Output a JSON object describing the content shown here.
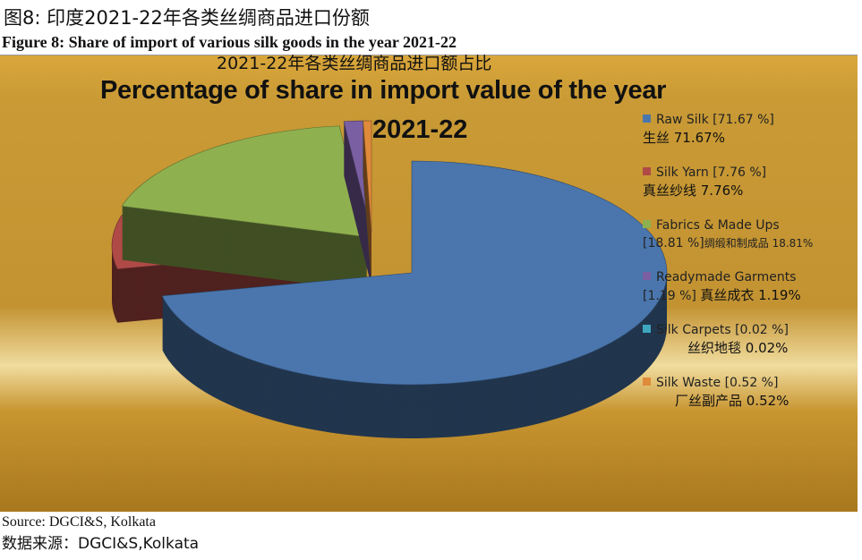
{
  "header": {
    "cn_title": "图8: 印度2021-22年各类丝绸商品进口份额",
    "en_title": "Figure 8: Share of import of various silk goods in the year 2021-22"
  },
  "chart_data": {
    "type": "pie",
    "style": "3d-exploded",
    "cn_title": "2021-22年各类丝绸商品进口额占比",
    "title": "Percentage of share in import value of the year",
    "subtitle": "2021-22",
    "legend_position": "right",
    "slices": [
      {
        "name": "Raw Silk [71.67 %]",
        "cn": "生丝 71.67%",
        "value": 71.67,
        "color": "#4a76ad"
      },
      {
        "name": "Silk Yarn [7.76 %]",
        "cn": "真丝纱线 7.76%",
        "value": 7.76,
        "color": "#b04a47"
      },
      {
        "name_line1": "Fabrics & Made Ups",
        "name_line2": "[18.81 %]",
        "cn": "绸缎和制成品 18.81%",
        "value": 18.81,
        "color": "#8fb04f"
      },
      {
        "name_line1": "Readymade Garments",
        "name_line2": "[1.19 %]",
        "cn": "真丝成衣 1.19%",
        "value": 1.19,
        "color": "#7b5fa3"
      },
      {
        "name": "Silk Carpets [0.02 %]",
        "cn": "丝织地毯 0.02%",
        "value": 0.02,
        "color": "#3fa6bf"
      },
      {
        "name": "Silk Waste [0.52 %]",
        "cn": "厂丝副产品 0.52%",
        "value": 0.52,
        "color": "#e08a3c"
      }
    ]
  },
  "footer": {
    "source": "Source: DGCI&S, Kolkata",
    "source_cn": "数据来源：DGCI&S,Kolkata"
  }
}
